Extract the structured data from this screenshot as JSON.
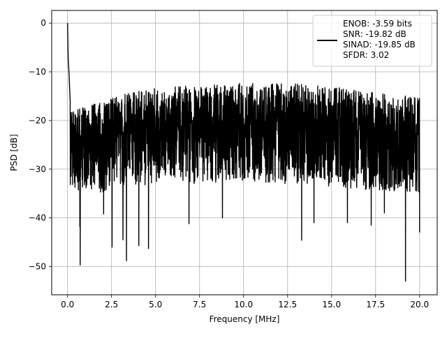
{
  "chart_data": {
    "type": "line",
    "title": "",
    "xlabel": "Frequency [MHz]",
    "ylabel": "PSD [dB]",
    "xlim": [
      -0.9,
      21.0
    ],
    "ylim": [
      -55.8,
      2.6
    ],
    "xticks": [
      0.0,
      2.5,
      5.0,
      7.5,
      10.0,
      12.5,
      15.0,
      17.5,
      20.0
    ],
    "xtick_labels": [
      "0.0",
      "2.5",
      "5.0",
      "7.5",
      "10.0",
      "12.5",
      "15.0",
      "17.5",
      "20.0"
    ],
    "yticks": [
      0,
      -10,
      -20,
      -30,
      -40,
      -50
    ],
    "ytick_labels": [
      "0",
      "−10",
      "−20",
      "−30",
      "−40",
      "−50"
    ],
    "grid": true,
    "legend_position": "top-right",
    "legend_lines": [
      "ENOB: -3.59 bits",
      "SNR: -19.82 dB",
      "SINAD: -19.85 dB",
      "SFDR: 3.02"
    ],
    "series_color": "#000000",
    "grid_color": "#b0b0b0",
    "series": [
      {
        "name": "ENOB: -3.59 bits",
        "x_range": [
          0.0,
          20.0
        ],
        "description": "dense noisy PSD spectrum",
        "peak_points": [
          {
            "x": 0.0,
            "y": 0.0
          },
          {
            "x": 0.04,
            "y": -7.5
          },
          {
            "x": 0.08,
            "y": -10.0
          },
          {
            "x": 0.15,
            "y": -16.0
          }
        ],
        "upper_envelope": [
          {
            "x": 0.3,
            "y": -17.0
          },
          {
            "x": 1.0,
            "y": -15.5
          },
          {
            "x": 2.5,
            "y": -13.5
          },
          {
            "x": 5.0,
            "y": -11.5
          },
          {
            "x": 7.5,
            "y": -11.0
          },
          {
            "x": 10.0,
            "y": -10.5
          },
          {
            "x": 12.5,
            "y": -10.5
          },
          {
            "x": 15.0,
            "y": -11.0
          },
          {
            "x": 17.5,
            "y": -12.5
          },
          {
            "x": 20.0,
            "y": -13.5
          }
        ],
        "lower_envelope": [
          {
            "x": 0.3,
            "y": -34.0
          },
          {
            "x": 1.0,
            "y": -35.0
          },
          {
            "x": 2.5,
            "y": -34.5
          },
          {
            "x": 5.0,
            "y": -33.0
          },
          {
            "x": 7.5,
            "y": -33.0
          },
          {
            "x": 10.0,
            "y": -32.5
          },
          {
            "x": 12.5,
            "y": -33.0
          },
          {
            "x": 15.0,
            "y": -33.5
          },
          {
            "x": 17.5,
            "y": -34.5
          },
          {
            "x": 20.0,
            "y": -35.0
          }
        ],
        "notable_dips": [
          {
            "x": 0.72,
            "y": -49.7
          },
          {
            "x": 3.35,
            "y": -48.8
          },
          {
            "x": 2.53,
            "y": -46.0
          },
          {
            "x": 4.6,
            "y": -46.3
          },
          {
            "x": 13.3,
            "y": -44.6
          },
          {
            "x": 19.2,
            "y": -53.0
          },
          {
            "x": 0.7,
            "y": -41.8
          },
          {
            "x": 2.05,
            "y": -39.2
          },
          {
            "x": 3.15,
            "y": -44.5
          },
          {
            "x": 4.05,
            "y": -45.7
          },
          {
            "x": 6.9,
            "y": -41.2
          },
          {
            "x": 8.8,
            "y": -40.0
          },
          {
            "x": 14.0,
            "y": -41.0
          },
          {
            "x": 15.9,
            "y": -41.0
          },
          {
            "x": 17.25,
            "y": -41.5
          },
          {
            "x": 18.0,
            "y": -39.0
          },
          {
            "x": 20.0,
            "y": -43.0
          }
        ]
      }
    ]
  }
}
